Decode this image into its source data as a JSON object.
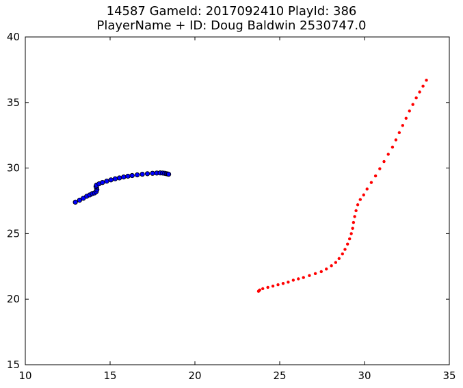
{
  "chart_data": {
    "type": "scatter",
    "title": "14587 GameId: 2017092410 PlayId: 386",
    "subtitle": "PlayerName + ID: Doug Baldwin 2530747.0",
    "xlim": [
      10,
      35
    ],
    "ylim": [
      15,
      40
    ],
    "x_ticks": [
      10,
      15,
      20,
      25,
      30,
      35
    ],
    "y_ticks": [
      15,
      20,
      25,
      30,
      35,
      40
    ],
    "grid": false,
    "series": [
      {
        "color": "#0000ff",
        "marker": "circle-outlined",
        "points": [
          [
            12.95,
            27.4
          ],
          [
            13.2,
            27.55
          ],
          [
            13.42,
            27.7
          ],
          [
            13.62,
            27.85
          ],
          [
            13.8,
            27.95
          ],
          [
            13.95,
            28.05
          ],
          [
            14.08,
            28.1
          ],
          [
            14.18,
            28.2
          ],
          [
            14.22,
            28.35
          ],
          [
            14.2,
            28.5
          ],
          [
            14.17,
            28.6
          ],
          [
            14.2,
            28.7
          ],
          [
            14.35,
            28.8
          ],
          [
            14.55,
            28.9
          ],
          [
            14.8,
            29.0
          ],
          [
            15.05,
            29.1
          ],
          [
            15.3,
            29.18
          ],
          [
            15.55,
            29.25
          ],
          [
            15.8,
            29.32
          ],
          [
            16.05,
            29.38
          ],
          [
            16.3,
            29.43
          ],
          [
            16.6,
            29.48
          ],
          [
            16.9,
            29.53
          ],
          [
            17.2,
            29.57
          ],
          [
            17.5,
            29.6
          ],
          [
            17.75,
            29.62
          ],
          [
            17.95,
            29.63
          ],
          [
            18.1,
            29.62
          ],
          [
            18.22,
            29.6
          ],
          [
            18.32,
            29.57
          ],
          [
            18.4,
            29.55
          ],
          [
            18.45,
            29.53
          ]
        ]
      },
      {
        "color": "#ff0000",
        "marker": "dot",
        "points": [
          [
            23.75,
            20.6
          ],
          [
            23.78,
            20.65
          ],
          [
            23.82,
            20.7
          ],
          [
            24.0,
            20.8
          ],
          [
            24.3,
            20.9
          ],
          [
            24.6,
            21.0
          ],
          [
            24.9,
            21.1
          ],
          [
            25.2,
            21.2
          ],
          [
            25.5,
            21.3
          ],
          [
            25.8,
            21.45
          ],
          [
            26.1,
            21.55
          ],
          [
            26.4,
            21.65
          ],
          [
            26.75,
            21.8
          ],
          [
            27.1,
            21.95
          ],
          [
            27.45,
            22.1
          ],
          [
            27.75,
            22.3
          ],
          [
            28.05,
            22.55
          ],
          [
            28.3,
            22.8
          ],
          [
            28.5,
            23.1
          ],
          [
            28.7,
            23.45
          ],
          [
            28.85,
            23.8
          ],
          [
            29.0,
            24.2
          ],
          [
            29.12,
            24.6
          ],
          [
            29.22,
            25.0
          ],
          [
            29.3,
            25.4
          ],
          [
            29.35,
            25.85
          ],
          [
            29.42,
            26.3
          ],
          [
            29.5,
            26.75
          ],
          [
            29.6,
            27.2
          ],
          [
            29.75,
            27.6
          ],
          [
            29.95,
            27.95
          ],
          [
            30.15,
            28.4
          ],
          [
            30.4,
            28.9
          ],
          [
            30.65,
            29.4
          ],
          [
            30.9,
            29.95
          ],
          [
            31.15,
            30.5
          ],
          [
            31.4,
            31.05
          ],
          [
            31.65,
            31.6
          ],
          [
            31.85,
            32.15
          ],
          [
            32.05,
            32.7
          ],
          [
            32.25,
            33.25
          ],
          [
            32.45,
            33.8
          ],
          [
            32.65,
            34.35
          ],
          [
            32.85,
            34.85
          ],
          [
            33.05,
            35.35
          ],
          [
            33.25,
            35.8
          ],
          [
            33.45,
            36.25
          ],
          [
            33.65,
            36.7
          ]
        ]
      }
    ]
  }
}
